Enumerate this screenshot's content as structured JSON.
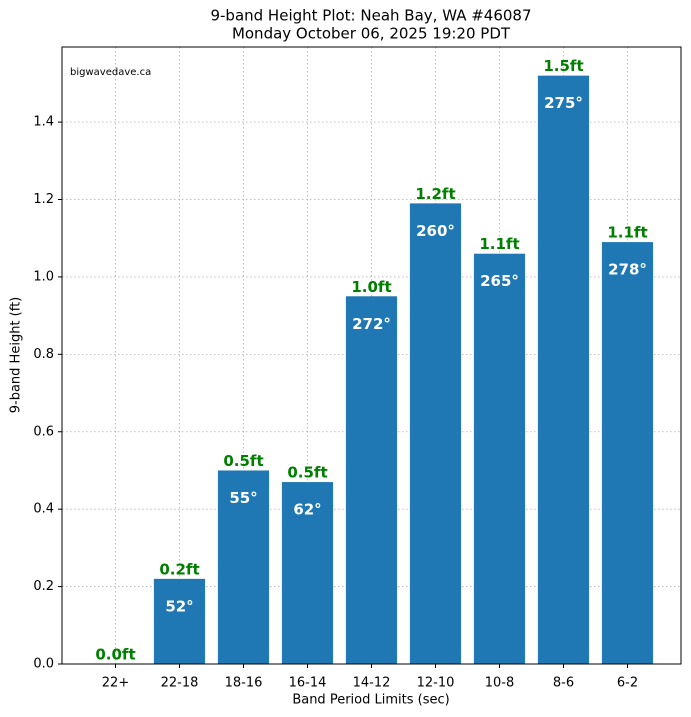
{
  "chart_data": {
    "type": "bar",
    "title": "9-band Height Plot: Neah Bay, WA #46087",
    "subtitle": "Monday October 06, 2025 19:20 PDT",
    "watermark": "bigwavedave.ca",
    "x_label": "Band Period Limits (sec)",
    "y_label": "9-band Height (ft)",
    "categories": [
      "22+",
      "22-18",
      "18-16",
      "16-14",
      "14-12",
      "12-10",
      "10-8",
      "8-6",
      "6-2"
    ],
    "values": [
      0.0,
      0.22,
      0.5,
      0.47,
      0.95,
      1.19,
      1.06,
      1.52,
      1.09
    ],
    "value_labels": [
      "0.0ft",
      "0.2ft",
      "0.5ft",
      "0.5ft",
      "1.0ft",
      "1.2ft",
      "1.1ft",
      "1.5ft",
      "1.1ft"
    ],
    "directions": [
      null,
      "52°",
      "55°",
      "62°",
      "272°",
      "260°",
      "265°",
      "275°",
      "278°"
    ],
    "color": "#1f77b4",
    "value_label_color": "#008000",
    "ylim": [
      0,
      1.594
    ],
    "yticks": [
      {
        "value": 0,
        "label": "0.0"
      },
      0.2,
      0.4,
      0.6,
      0.8,
      {
        "value": 1,
        "label": "1.0"
      },
      1.2,
      1.4
    ],
    "grid": true
  }
}
